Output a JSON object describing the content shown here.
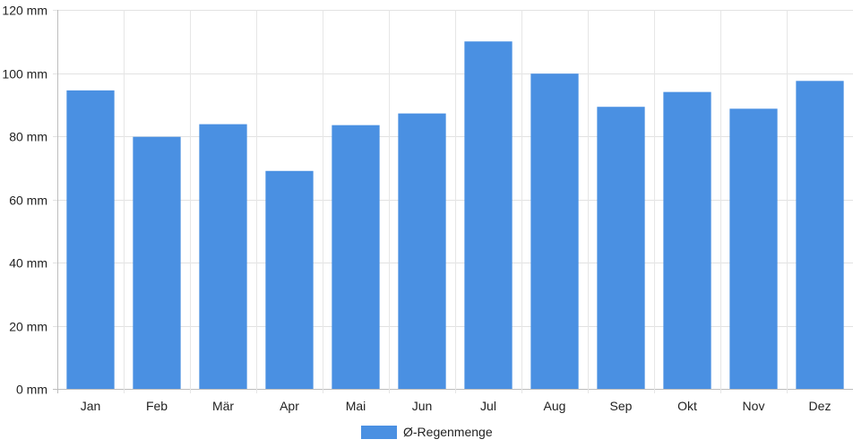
{
  "chart_data": {
    "type": "bar",
    "categories": [
      "Jan",
      "Feb",
      "Mär",
      "Apr",
      "Mai",
      "Jun",
      "Jul",
      "Aug",
      "Sep",
      "Okt",
      "Nov",
      "Dez"
    ],
    "series": [
      {
        "name": "Ø-Regenmenge",
        "values": [
          94.5,
          79.8,
          83.8,
          69.0,
          83.5,
          87.2,
          110.0,
          99.8,
          89.3,
          94.0,
          88.7,
          97.5
        ],
        "color": "#4a90e2"
      }
    ],
    "ylim": [
      0,
      120
    ],
    "yticks": [
      0,
      20,
      40,
      60,
      80,
      100,
      120
    ],
    "y_tick_labels": [
      "0 mm",
      "20 mm",
      "40 mm",
      "60 mm",
      "80 mm",
      "100 mm",
      "120 mm"
    ],
    "grid": true,
    "legend_position": "bottom"
  }
}
